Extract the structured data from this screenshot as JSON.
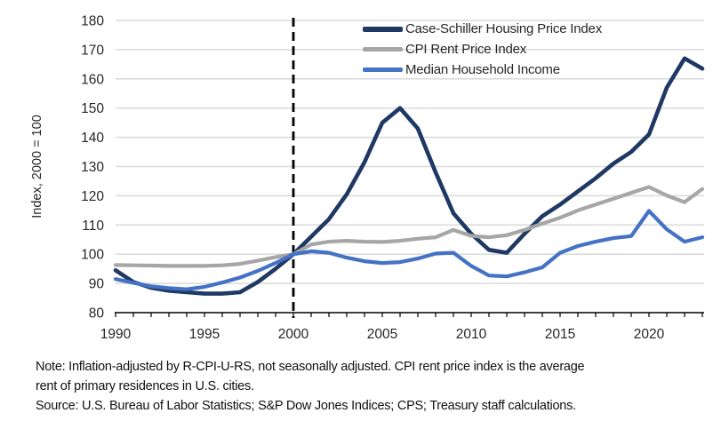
{
  "chart_data": {
    "type": "line",
    "title": "",
    "xlabel": "",
    "ylabel": "Index, 2000 = 100",
    "xlim": [
      1990,
      2023
    ],
    "ylim": [
      80,
      180
    ],
    "ytick_step": 10,
    "xticks": [
      1990,
      1995,
      2000,
      2005,
      2010,
      2015,
      2020
    ],
    "minor_xtick_step": 1,
    "grid": "horizontal",
    "legend_position": "top-right",
    "reference_line": {
      "x": 2000,
      "style": "dashed",
      "color": "#000000",
      "width": 2.8,
      "dash": "10 6"
    },
    "x": [
      1990,
      1991,
      1992,
      1993,
      1994,
      1995,
      1996,
      1997,
      1998,
      1999,
      2000,
      2001,
      2002,
      2003,
      2004,
      2005,
      2006,
      2007,
      2008,
      2009,
      2010,
      2011,
      2012,
      2013,
      2014,
      2015,
      2016,
      2017,
      2018,
      2019,
      2020,
      2021,
      2022,
      2023
    ],
    "series": [
      {
        "name": "Case-Schiller Housing Price Index",
        "color": "#1f3864",
        "line_width": 4.6,
        "values": [
          94.5,
          90.5,
          88.5,
          87.5,
          87,
          86.5,
          86.5,
          87,
          90.5,
          95,
          100,
          106,
          112,
          120.5,
          131.5,
          145,
          150,
          143,
          128,
          114,
          107,
          101.5,
          100.5,
          107,
          113,
          117,
          121.5,
          126,
          131,
          135,
          141,
          157,
          167,
          163.5
        ]
      },
      {
        "name": "CPI Rent Price Index",
        "color": "#a6a6a6",
        "line_width": 4.2,
        "values": [
          96.3,
          96.2,
          96.1,
          96,
          96,
          96,
          96.2,
          96.7,
          97.8,
          99,
          100,
          103.3,
          104.3,
          104.6,
          104.3,
          104.2,
          104.6,
          105.3,
          105.8,
          108.3,
          106.3,
          105.8,
          106.5,
          108.3,
          110.5,
          112.5,
          115,
          117,
          119,
          121,
          123,
          120.1,
          117.8,
          122.3
        ]
      },
      {
        "name": "Median Household Income",
        "color": "#4472c4",
        "line_width": 4.2,
        "values": [
          91.5,
          90.2,
          89,
          88.4,
          88,
          88.8,
          90.3,
          92,
          94.3,
          97,
          100,
          101,
          100.5,
          98.8,
          97.6,
          97,
          97.3,
          98.5,
          100.2,
          100.5,
          96,
          92.7,
          92.4,
          93.8,
          95.5,
          100.5,
          102.8,
          104.3,
          105.5,
          106.2,
          114.8,
          108.5,
          104.3,
          105.8
        ]
      }
    ]
  },
  "axes_style": {
    "grid_color": "#d9d9d9",
    "axis_color": "#000000",
    "tick_label_color": "#262626"
  },
  "notes": {
    "note_line1": "Note: Inflation-adjusted by R-CPI-U-RS, not seasonally adjusted. CPI rent price index is the average",
    "note_line2": "rent of primary residences in U.S. cities.",
    "source": "Source: U.S. Bureau of Labor Statistics; S&P Dow Jones Indices; CPS; Treasury staff calculations."
  }
}
